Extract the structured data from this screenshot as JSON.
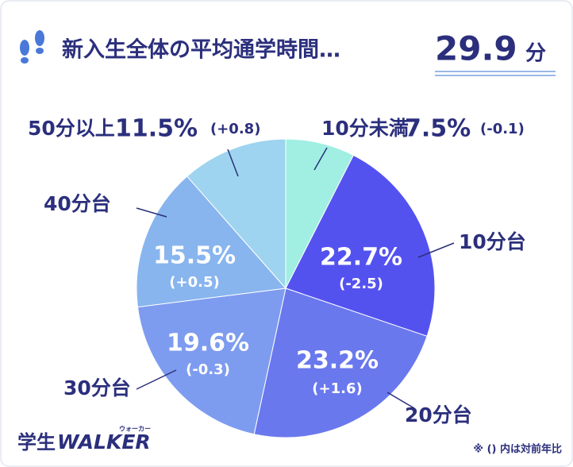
{
  "chart_data": {
    "type": "pie",
    "title": "新入生全体の平均通学時間…",
    "average": "29.9",
    "average_unit": "分",
    "categories": [
      "10分未満",
      "10分台",
      "20分台",
      "30分台",
      "40分台",
      "50分以上"
    ],
    "values": [
      7.5,
      22.7,
      23.2,
      19.6,
      15.5,
      11.5
    ],
    "value_labels": [
      "7.5%",
      "22.7%",
      "23.2%",
      "19.6%",
      "15.5%",
      "11.5%"
    ],
    "change_labels": [
      "(-0.1)",
      "(-2.5)",
      "(+1.6)",
      "(-0.3)",
      "(+0.5)",
      "(+0.8)"
    ],
    "colors": [
      "#a0efe2",
      "#5452ef",
      "#6a78ee",
      "#7e9cef",
      "#88b5ee",
      "#9ed4ef"
    ],
    "note": "※ () 内は対前年比",
    "logo": {
      "kanji": "学生",
      "latin": "WALKER",
      "ruby": "ウォーカー"
    }
  }
}
